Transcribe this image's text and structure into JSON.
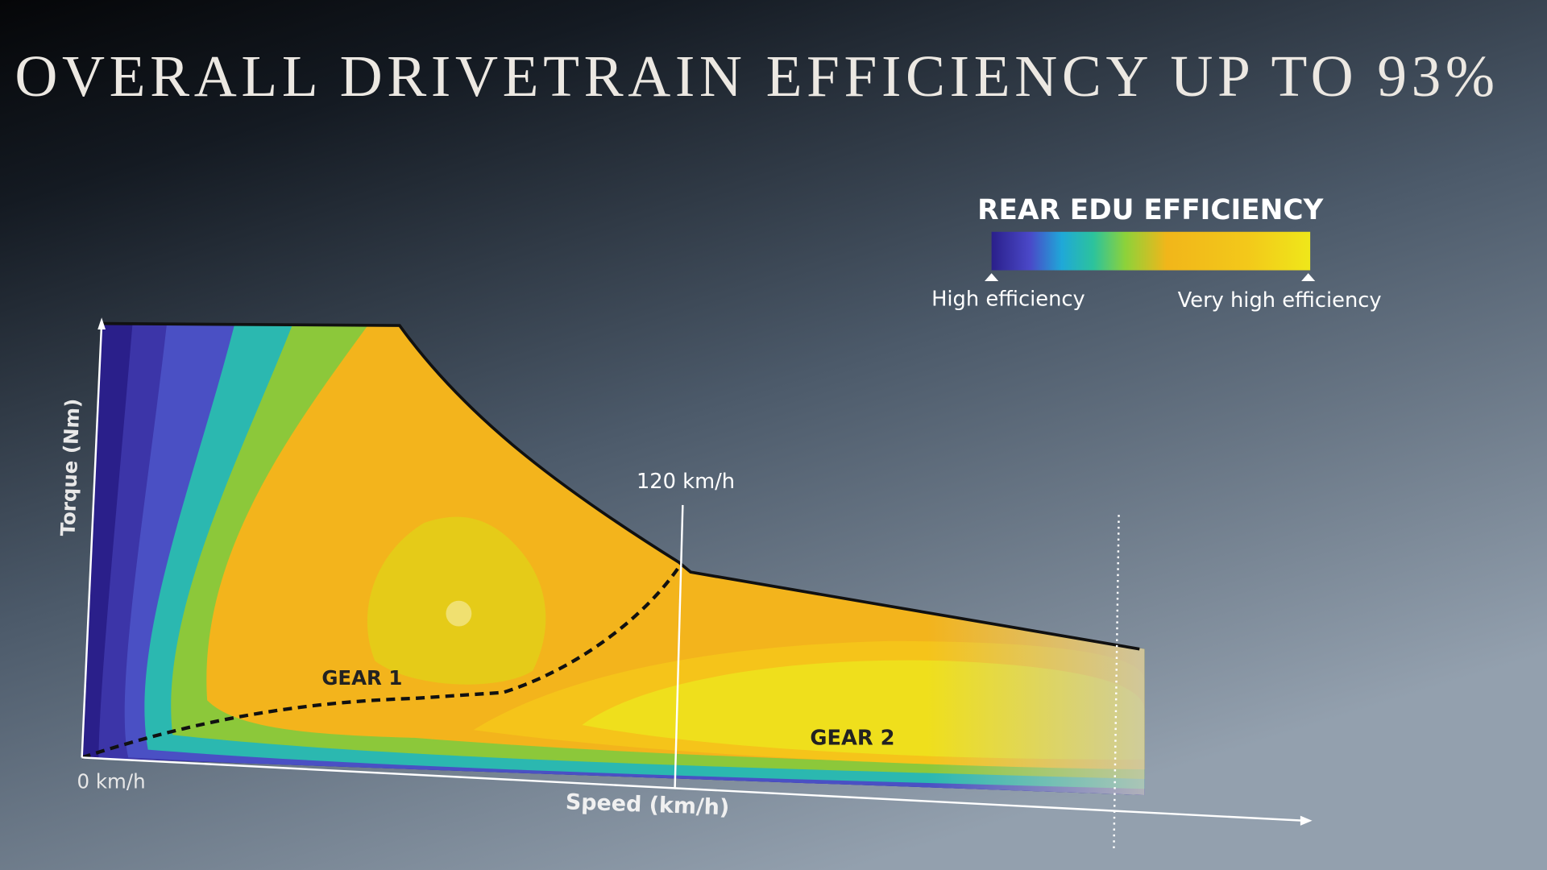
{
  "title": "OVERALL DRIVETRAIN EFFICIENCY UP TO 93%",
  "legend": {
    "title": "REAR EDU EFFICIENCY",
    "low_label": "High efficiency",
    "high_label": "Very high efficiency"
  },
  "axes": {
    "y_label": "Torque (Nm)",
    "x_label": "Speed (km/h)",
    "x_origin_label": "0 km/h"
  },
  "annotations": {
    "speed_marker": "120 km/h",
    "gear_1": "GEAR 1",
    "gear_2": "GEAR 2"
  }
}
